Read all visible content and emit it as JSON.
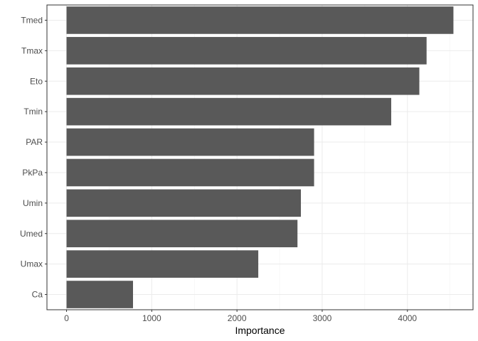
{
  "chart_data": {
    "type": "bar",
    "orientation": "horizontal",
    "title": "",
    "xlabel": "Importance",
    "ylabel": "",
    "categories": [
      "Tmed",
      "Tmax",
      "Eto",
      "Tmin",
      "PAR",
      "PkPa",
      "Umin",
      "Umed",
      "Umax",
      "Ca"
    ],
    "values": [
      4540,
      4225,
      4140,
      3810,
      2905,
      2905,
      2750,
      2710,
      2250,
      780
    ],
    "xlim": [
      -230,
      4770
    ],
    "xticks": [
      0,
      1000,
      2000,
      3000,
      4000
    ],
    "xtick_labels": [
      "0",
      "1000",
      "2000",
      "3000",
      "4000"
    ],
    "grid": true,
    "bar_color": "#595959",
    "theme": "light"
  }
}
